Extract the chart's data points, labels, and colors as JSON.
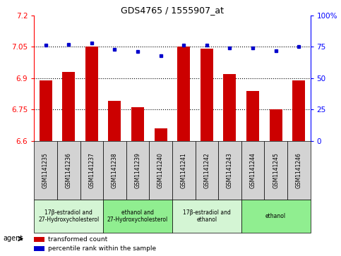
{
  "title": "GDS4765 / 1555907_at",
  "samples": [
    "GSM1141235",
    "GSM1141236",
    "GSM1141237",
    "GSM1141238",
    "GSM1141239",
    "GSM1141240",
    "GSM1141241",
    "GSM1141242",
    "GSM1141243",
    "GSM1141244",
    "GSM1141245",
    "GSM1141246"
  ],
  "red_values": [
    6.89,
    6.93,
    7.05,
    6.79,
    6.76,
    6.66,
    7.05,
    7.04,
    6.92,
    6.84,
    6.75,
    6.89
  ],
  "blue_values": [
    76,
    77,
    78,
    73,
    71,
    68,
    76,
    76,
    74,
    74,
    72,
    75
  ],
  "ylim_left": [
    6.6,
    7.2
  ],
  "ylim_right": [
    0,
    100
  ],
  "yticks_left": [
    6.6,
    6.75,
    6.9,
    7.05,
    7.2
  ],
  "yticks_right": [
    0,
    25,
    50,
    75,
    100
  ],
  "hlines": [
    6.75,
    6.9,
    7.05
  ],
  "groups": [
    {
      "label": "17β-estradiol and\n27-Hydroxycholesterol",
      "start": 0,
      "end": 3,
      "color": "#d4f5d4"
    },
    {
      "label": "ethanol and\n27-Hydroxycholesterol",
      "start": 3,
      "end": 6,
      "color": "#90ee90"
    },
    {
      "label": "17β-estradiol and\nethanol",
      "start": 6,
      "end": 9,
      "color": "#d4f5d4"
    },
    {
      "label": "ethanol",
      "start": 9,
      "end": 12,
      "color": "#90ee90"
    }
  ],
  "bar_color": "#cc0000",
  "dot_color": "#0000cc",
  "bar_bottom": 6.6,
  "legend_items": [
    {
      "color": "#cc0000",
      "label": "transformed count"
    },
    {
      "color": "#0000cc",
      "label": "percentile rank within the sample"
    }
  ],
  "agent_label": "agent"
}
